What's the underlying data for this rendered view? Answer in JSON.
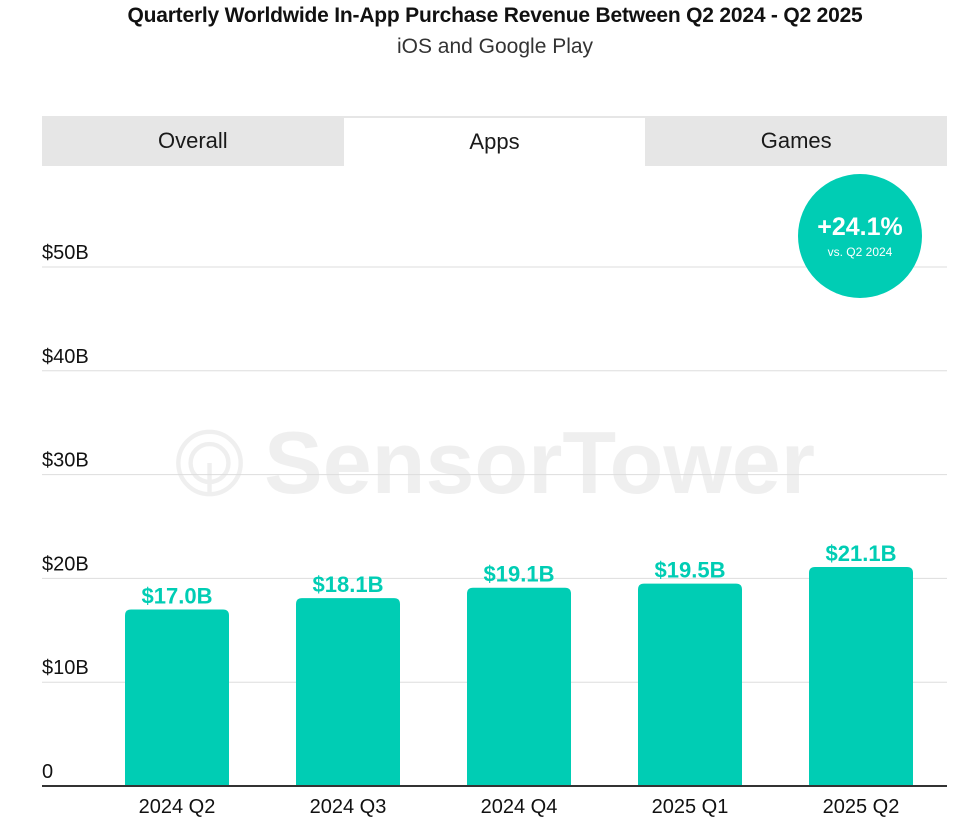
{
  "header": {
    "title": "Quarterly Worldwide In-App Purchase Revenue Between Q2 2024 - Q2 2025",
    "subtitle": "iOS and Google Play"
  },
  "tabs": [
    {
      "label": "Overall",
      "active": false
    },
    {
      "label": "Apps",
      "active": true
    },
    {
      "label": "Games",
      "active": false
    }
  ],
  "badge": {
    "value": "+24.1%",
    "sub": "vs. Q2 2024"
  },
  "watermark": {
    "text": "SensorTower"
  },
  "colors": {
    "accent": "#00CDB4",
    "tab_bg": "#e6e6e6",
    "grid": "#dddddd",
    "axis": "#333333"
  },
  "chart_data": {
    "type": "bar",
    "title": "Quarterly Worldwide In-App Purchase Revenue Between Q2 2024 - Q2 2025",
    "subtitle": "iOS and Google Play",
    "xlabel": "",
    "ylabel": "",
    "categories": [
      "2024 Q2",
      "2024 Q3",
      "2024 Q4",
      "2025 Q1",
      "2025 Q2"
    ],
    "values": [
      17.0,
      18.1,
      19.1,
      19.5,
      21.1
    ],
    "data_labels": [
      "$17.0B",
      "$18.1B",
      "$19.1B",
      "$19.5B",
      "$21.1B"
    ],
    "ylim": [
      0,
      50
    ],
    "yticks": [
      0,
      10,
      20,
      30,
      40,
      50
    ],
    "ytick_labels": [
      "0",
      "$10B",
      "$20B",
      "$30B",
      "$40B",
      "$50B"
    ],
    "unit": "USD billions",
    "grid": true,
    "legend": "none"
  }
}
